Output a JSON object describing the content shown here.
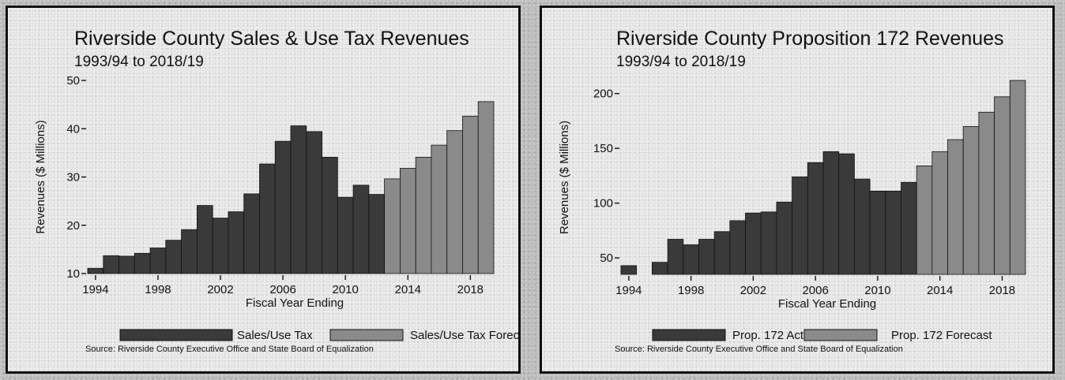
{
  "chart_data": [
    {
      "type": "bar",
      "title": "Riverside County Sales & Use Tax Revenues",
      "subtitle": "1993/94 to 2018/19",
      "xlabel": "Fiscal Year Ending",
      "ylabel": "Revenues ($ Millions)",
      "ylim": [
        10,
        50
      ],
      "yticks": [
        "10",
        "20",
        "30",
        "40",
        "50"
      ],
      "xticks": [
        "1994",
        "1998",
        "2002",
        "2006",
        "2010",
        "2014",
        "2018"
      ],
      "x": [
        1994,
        1995,
        1996,
        1997,
        1998,
        1999,
        2000,
        2001,
        2002,
        2003,
        2004,
        2005,
        2006,
        2007,
        2008,
        2009,
        2010,
        2011,
        2012,
        2013,
        2014,
        2015,
        2016,
        2017,
        2018,
        2019
      ],
      "series": [
        {
          "name": "Sales/Use Tax",
          "color": "#3a3a3a",
          "values": [
            11.1,
            13.7,
            13.6,
            14.2,
            15.3,
            16.9,
            19.1,
            24.1,
            21.5,
            22.8,
            26.5,
            32.7,
            37.4,
            40.6,
            39.4,
            34.1,
            25.8,
            28.3,
            26.4,
            null,
            null,
            null,
            null,
            null,
            null,
            null
          ]
        },
        {
          "name": "Sales/Use Tax Forecast",
          "color": "#8a8a8a",
          "values": [
            null,
            null,
            null,
            null,
            null,
            null,
            null,
            null,
            null,
            null,
            null,
            null,
            null,
            null,
            null,
            null,
            null,
            null,
            null,
            29.6,
            31.8,
            34.1,
            36.6,
            39.6,
            42.6,
            45.6
          ]
        }
      ],
      "source": "Source: Riverside County Executive Office and State Board of Equalization"
    },
    {
      "type": "bar",
      "title": "Riverside County Proposition 172 Revenues",
      "subtitle": "1993/94 to 2018/19",
      "xlabel": "Fiscal Year Ending",
      "ylabel": "Revenues ($ Millions)",
      "ylim": [
        35,
        212
      ],
      "yticks": [
        "50",
        "100",
        "150",
        "200"
      ],
      "xticks": [
        "1994",
        "1998",
        "2002",
        "2006",
        "2010",
        "2014",
        "2018"
      ],
      "x": [
        1994,
        1995,
        1996,
        1997,
        1998,
        1999,
        2000,
        2001,
        2002,
        2003,
        2004,
        2005,
        2006,
        2007,
        2008,
        2009,
        2010,
        2011,
        2012,
        2013,
        2014,
        2015,
        2016,
        2017,
        2018,
        2019
      ],
      "series": [
        {
          "name": "Prop. 172 Actual",
          "color": "#3a3a3a",
          "values": [
            43,
            null,
            46,
            67,
            62,
            67,
            74,
            84,
            91,
            92,
            101,
            124,
            137,
            147,
            145,
            122,
            111,
            111,
            119,
            null,
            null,
            null,
            null,
            null,
            null,
            null
          ]
        },
        {
          "name": "Prop. 172 Forecast",
          "color": "#8a8a8a",
          "values": [
            null,
            null,
            null,
            null,
            null,
            null,
            null,
            null,
            null,
            null,
            null,
            null,
            null,
            null,
            null,
            null,
            null,
            null,
            null,
            134,
            147,
            158,
            170,
            183,
            197,
            212
          ]
        }
      ],
      "source": "Source: Riverside County Executive Office and State Board of Equalization"
    }
  ]
}
